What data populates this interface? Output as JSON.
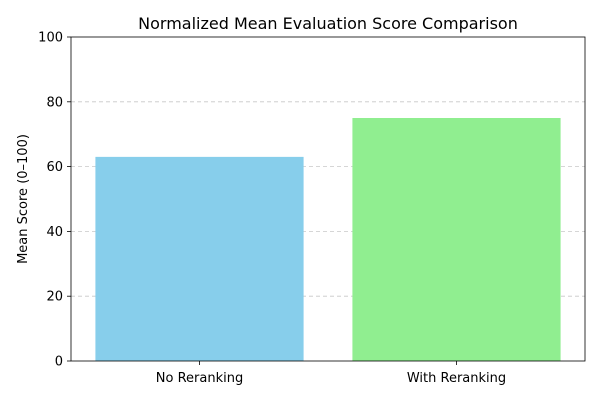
{
  "chart_data": {
    "type": "bar",
    "title": "Normalized Mean Evaluation Score Comparison",
    "xlabel": "",
    "ylabel": "Mean Score (0–100)",
    "categories": [
      "No Reranking",
      "With Reranking"
    ],
    "values": [
      63,
      75
    ],
    "colors": [
      "#87ceeb",
      "#90ee90"
    ],
    "ylim": [
      0,
      100
    ],
    "yticks": [
      0,
      20,
      40,
      60,
      80,
      100
    ],
    "grid": "y-dashed",
    "grid_color": "#c8c8c8"
  }
}
